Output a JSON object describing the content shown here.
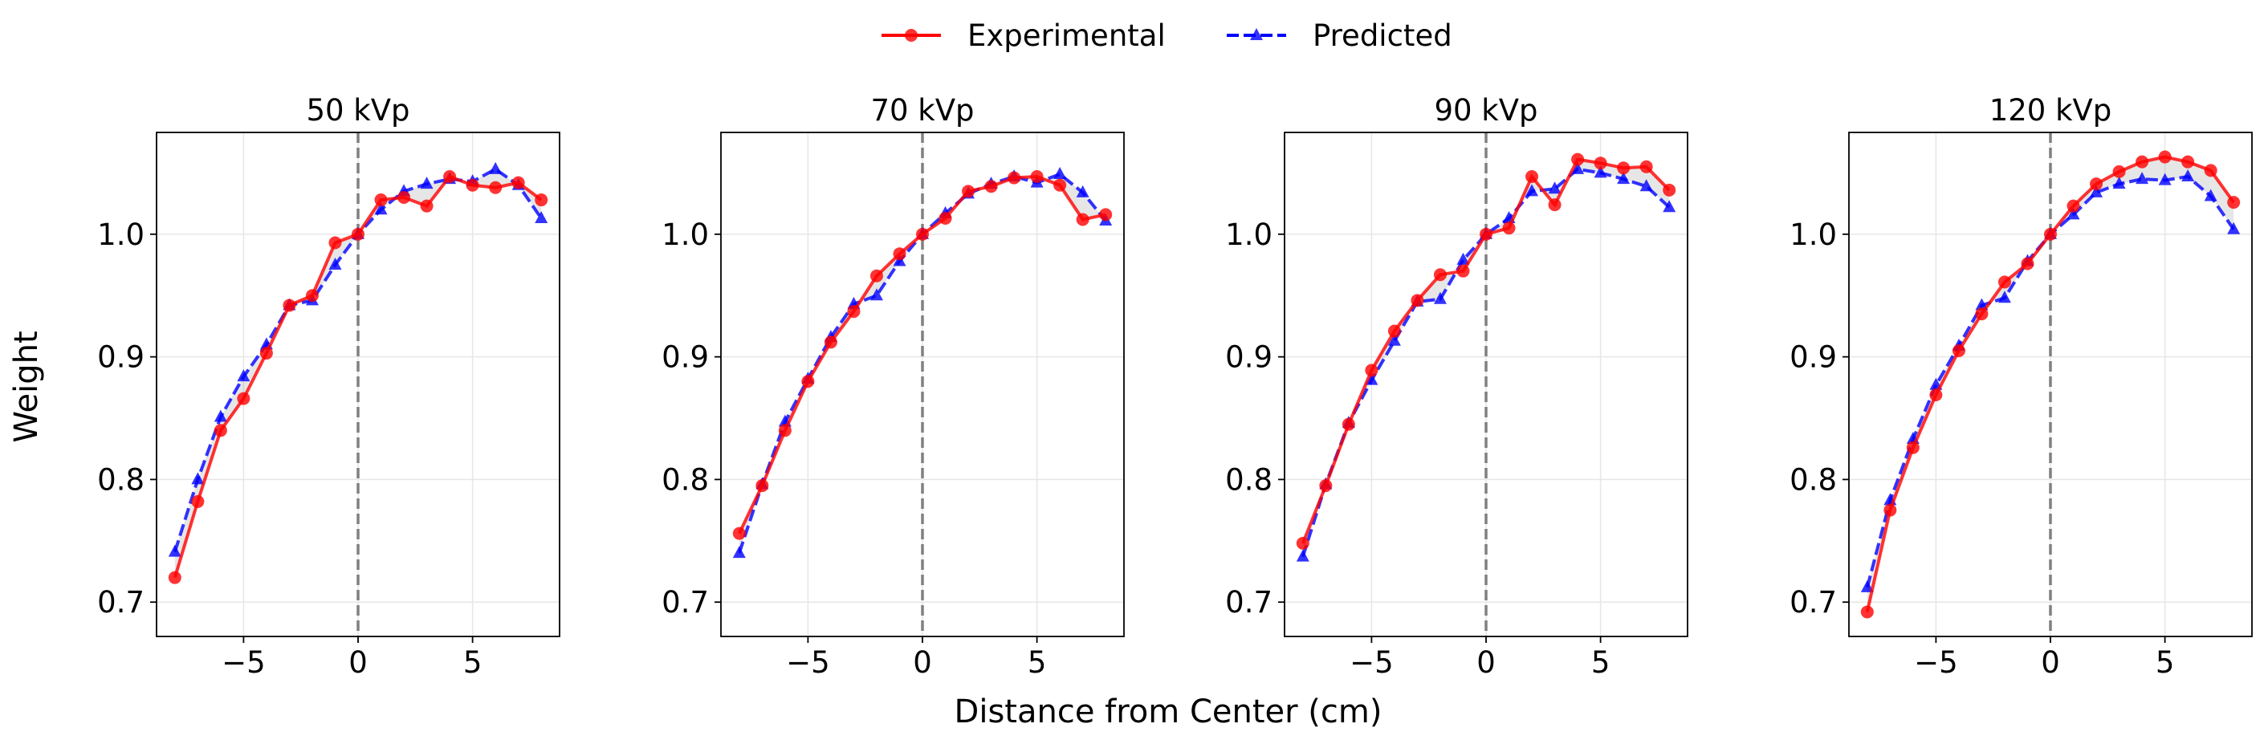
{
  "figure": {
    "xlabel": "Distance from Center (cm)",
    "ylabel": "Weight",
    "legend": {
      "placement": "top-center",
      "items": [
        {
          "label": "Experimental",
          "color": "#ff0000",
          "marker": "circle",
          "linestyle": "solid"
        },
        {
          "label": "Predicted",
          "color": "#0000ff",
          "marker": "triangle",
          "linestyle": "dashed"
        }
      ]
    }
  },
  "chart_data": [
    {
      "type": "line",
      "title": "50 kVp",
      "x": [
        -8,
        -7,
        -6,
        -5,
        -4,
        -3,
        -2,
        -1,
        0,
        1,
        2,
        3,
        4,
        5,
        6,
        7,
        8
      ],
      "series": [
        {
          "name": "Experimental",
          "values": [
            0.72,
            0.782,
            0.84,
            0.866,
            0.903,
            0.942,
            0.95,
            0.993,
            1.0,
            1.028,
            1.03,
            1.023,
            1.047,
            1.04,
            1.038,
            1.042,
            1.028
          ]
        },
        {
          "name": "Predicted",
          "values": [
            0.741,
            0.8,
            0.851,
            0.884,
            0.91,
            0.942,
            0.946,
            0.975,
            1.0,
            1.02,
            1.035,
            1.041,
            1.045,
            1.043,
            1.053,
            1.04,
            1.013
          ]
        }
      ],
      "xlim": [
        -8.8,
        8.8
      ],
      "ylim": [
        0.672,
        1.083
      ],
      "xticks": [
        -5,
        0,
        5
      ],
      "xtick_labels": [
        "−5",
        "0",
        "5"
      ],
      "yticks": [
        0.7,
        0.8,
        0.9,
        1.0
      ],
      "ytick_labels": [
        "0.7",
        "0.8",
        "0.9",
        "1.0"
      ],
      "reference_line_x": 0,
      "grid": true,
      "shaded_between_series": true
    },
    {
      "type": "line",
      "title": "70 kVp",
      "x": [
        -8,
        -7,
        -6,
        -5,
        -4,
        -3,
        -2,
        -1,
        0,
        1,
        2,
        3,
        4,
        5,
        6,
        7,
        8
      ],
      "series": [
        {
          "name": "Experimental",
          "values": [
            0.756,
            0.795,
            0.84,
            0.88,
            0.912,
            0.937,
            0.966,
            0.984,
            1.0,
            1.013,
            1.035,
            1.039,
            1.046,
            1.047,
            1.04,
            1.012,
            1.016
          ]
        },
        {
          "name": "Predicted",
          "values": [
            0.74,
            0.796,
            0.847,
            0.882,
            0.916,
            0.943,
            0.95,
            0.978,
            1.0,
            1.017,
            1.033,
            1.041,
            1.047,
            1.042,
            1.049,
            1.034,
            1.011
          ]
        }
      ],
      "xlim": [
        -8.8,
        8.8
      ],
      "ylim": [
        0.672,
        1.083
      ],
      "xticks": [
        -5,
        0,
        5
      ],
      "xtick_labels": [
        "−5",
        "0",
        "5"
      ],
      "yticks": [
        0.7,
        0.8,
        0.9,
        1.0
      ],
      "ytick_labels": [
        "0.7",
        "0.8",
        "0.9",
        "1.0"
      ],
      "reference_line_x": 0,
      "grid": true,
      "shaded_between_series": true
    },
    {
      "type": "line",
      "title": "90 kVp",
      "x": [
        -8,
        -7,
        -6,
        -5,
        -4,
        -3,
        -2,
        -1,
        0,
        1,
        2,
        3,
        4,
        5,
        6,
        7,
        8
      ],
      "series": [
        {
          "name": "Experimental",
          "values": [
            0.748,
            0.795,
            0.845,
            0.889,
            0.921,
            0.946,
            0.967,
            0.97,
            1.0,
            1.005,
            1.047,
            1.024,
            1.061,
            1.058,
            1.054,
            1.055,
            1.036
          ]
        },
        {
          "name": "Predicted",
          "values": [
            0.737,
            0.796,
            0.846,
            0.881,
            0.913,
            0.945,
            0.947,
            0.979,
            1.0,
            1.013,
            1.035,
            1.037,
            1.053,
            1.05,
            1.045,
            1.039,
            1.022
          ]
        }
      ],
      "xlim": [
        -8.8,
        8.8
      ],
      "ylim": [
        0.672,
        1.083
      ],
      "xticks": [
        -5,
        0,
        5
      ],
      "xtick_labels": [
        "−5",
        "0",
        "5"
      ],
      "yticks": [
        0.7,
        0.8,
        0.9,
        1.0
      ],
      "ytick_labels": [
        "0.7",
        "0.8",
        "0.9",
        "1.0"
      ],
      "reference_line_x": 0,
      "grid": true,
      "shaded_between_series": true
    },
    {
      "type": "line",
      "title": "120 kVp",
      "x": [
        -8,
        -7,
        -6,
        -5,
        -4,
        -3,
        -2,
        -1,
        0,
        1,
        2,
        3,
        4,
        5,
        6,
        7,
        8
      ],
      "series": [
        {
          "name": "Experimental",
          "values": [
            0.692,
            0.775,
            0.826,
            0.869,
            0.905,
            0.935,
            0.961,
            0.976,
            1.0,
            1.023,
            1.041,
            1.051,
            1.059,
            1.063,
            1.059,
            1.052,
            1.026
          ]
        },
        {
          "name": "Predicted",
          "values": [
            0.712,
            0.783,
            0.833,
            0.877,
            0.909,
            0.942,
            0.948,
            0.978,
            1.0,
            1.016,
            1.034,
            1.041,
            1.045,
            1.044,
            1.047,
            1.031,
            1.004
          ]
        }
      ],
      "xlim": [
        -8.8,
        8.8
      ],
      "ylim": [
        0.672,
        1.083
      ],
      "xticks": [
        -5,
        0,
        5
      ],
      "xtick_labels": [
        "−5",
        "0",
        "5"
      ],
      "yticks": [
        0.7,
        0.8,
        0.9,
        1.0
      ],
      "ytick_labels": [
        "0.7",
        "0.8",
        "0.9",
        "1.0"
      ],
      "reference_line_x": 0,
      "grid": true,
      "shaded_between_series": true
    }
  ]
}
